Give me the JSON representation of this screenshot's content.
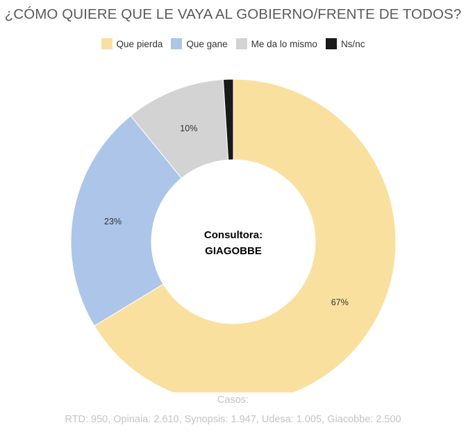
{
  "chart_data": {
    "type": "pie",
    "variant": "donut",
    "title": "¿CÓMO QUIERE QUE LE VAYA AL GOBIERNO/FRENTE DE TODOS?",
    "categories": [
      "Que pierda",
      "Que gane",
      "Me da lo mismo",
      "Ns/nc"
    ],
    "values": [
      67,
      23,
      10,
      1
    ],
    "value_labels": [
      "67%",
      "23%",
      "10%",
      ""
    ],
    "colors": [
      "#fae09f",
      "#adc5e8",
      "#d3d3d3",
      "#1a1a1a"
    ],
    "legend": "top-center",
    "center_label": [
      "Consultora:",
      "GIAGOBBE"
    ]
  },
  "footer": {
    "line1": "Casos:",
    "line2": "RTD: 950, Opinaia: 2.610, Synopsis: 1.947, Udesa: 1.005, Giacobbe: 2.500"
  }
}
